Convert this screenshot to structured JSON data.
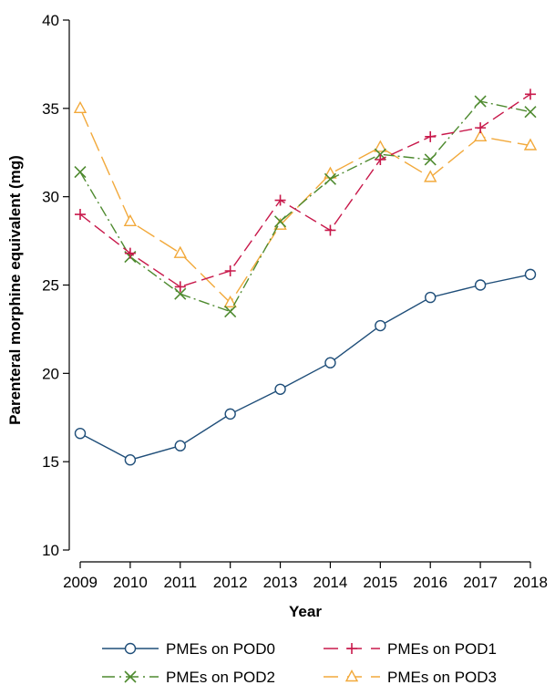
{
  "chart_data": {
    "type": "line",
    "xlabel": "Year",
    "ylabel": "Parenteral morphine equivalent (mg)",
    "x": [
      2009,
      2010,
      2011,
      2012,
      2013,
      2014,
      2015,
      2016,
      2017,
      2018
    ],
    "xlim": [
      2009,
      2018
    ],
    "ylim": [
      10,
      40
    ],
    "yticks": [
      10,
      15,
      20,
      25,
      30,
      35,
      40
    ],
    "grid": false,
    "legend_position": "bottom",
    "series": [
      {
        "name": "PMEs on POD0",
        "color": "#1f4e79",
        "marker": "circle",
        "dash": "solid",
        "values": [
          16.6,
          15.1,
          15.9,
          17.7,
          19.1,
          20.6,
          22.7,
          24.3,
          25.0,
          25.6
        ]
      },
      {
        "name": "PMEs on POD1",
        "color": "#c8194b",
        "marker": "plus",
        "dash": "long-dash",
        "values": [
          29.0,
          26.8,
          24.9,
          25.8,
          29.8,
          28.1,
          32.1,
          33.4,
          33.9,
          35.8
        ]
      },
      {
        "name": "PMEs on POD2",
        "color": "#4e8a2f",
        "marker": "x",
        "dash": "dash-dot",
        "values": [
          31.4,
          26.6,
          24.5,
          23.5,
          28.6,
          31.0,
          32.4,
          32.1,
          35.4,
          34.8
        ]
      },
      {
        "name": "PMEs on POD3",
        "color": "#f2a93b",
        "marker": "triangle",
        "dash": "long-dash-wide",
        "values": [
          35.0,
          28.6,
          26.8,
          24.0,
          28.4,
          31.3,
          32.8,
          31.1,
          33.4,
          32.9
        ]
      }
    ]
  }
}
